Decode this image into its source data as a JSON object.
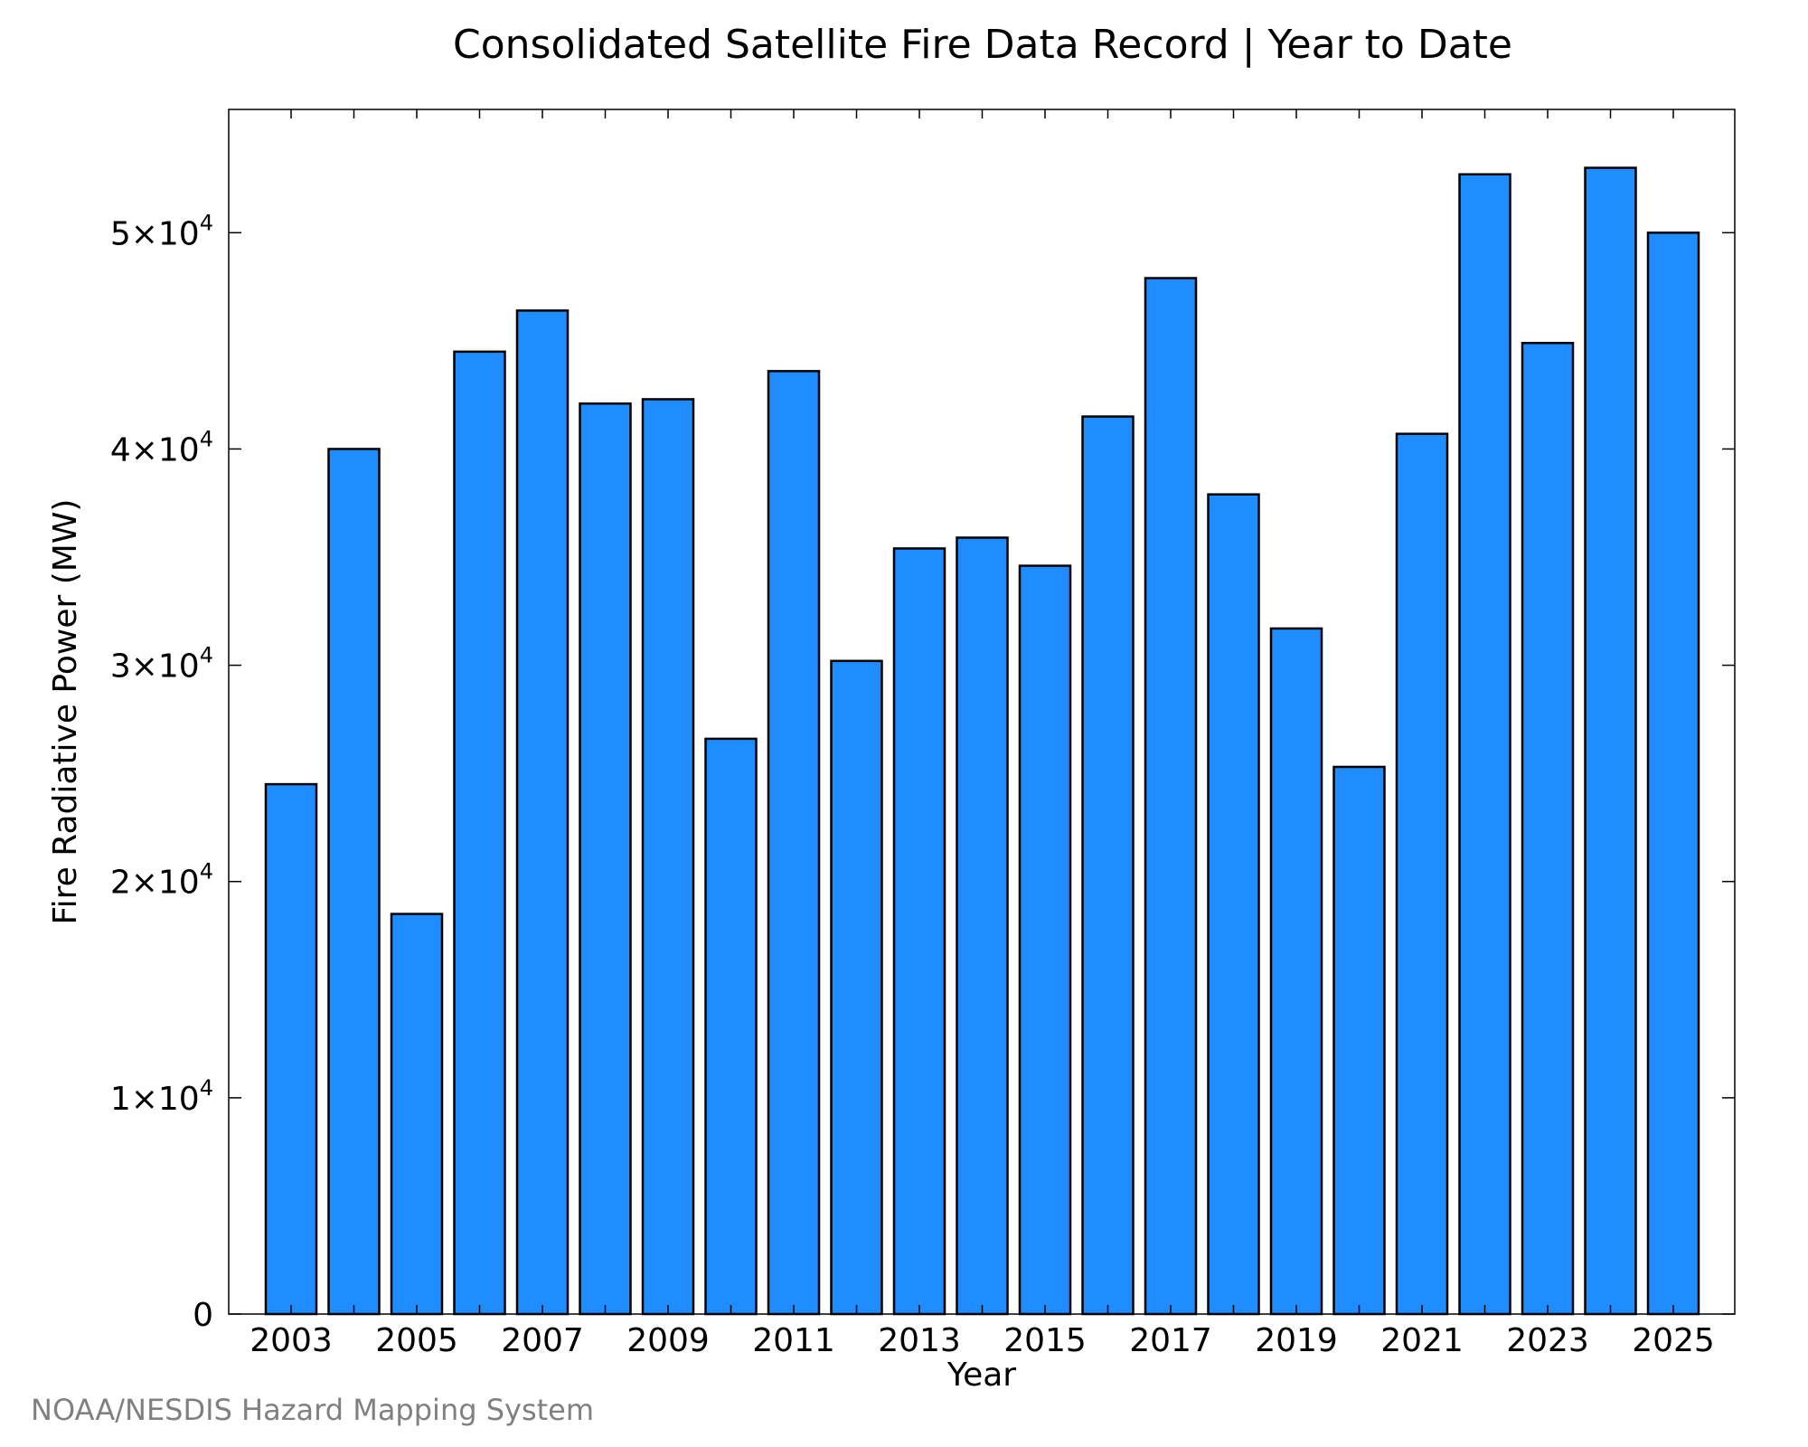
{
  "chart_data": {
    "type": "bar",
    "title": "Consolidated Satellite Fire Data Record | Year to Date",
    "xlabel": "Year",
    "ylabel": "Fire Radiative Power (MW)",
    "ylim": [
      0,
      55700
    ],
    "bar_color": "#1f8cff",
    "bar_edge_color": "#000000",
    "grid": false,
    "categories": [
      "2003",
      "2004",
      "2005",
      "2006",
      "2007",
      "2008",
      "2009",
      "2010",
      "2011",
      "2012",
      "2013",
      "2014",
      "2015",
      "2016",
      "2017",
      "2018",
      "2019",
      "2020",
      "2021",
      "2022",
      "2023",
      "2024",
      "2025"
    ],
    "values": [
      24500,
      40000,
      18500,
      44500,
      46400,
      42100,
      42300,
      26600,
      43600,
      30200,
      35400,
      35900,
      34600,
      41500,
      47900,
      37900,
      31700,
      25300,
      40700,
      52700,
      44900,
      53000,
      50000
    ],
    "x_tick_labels": [
      "2003",
      "2005",
      "2007",
      "2009",
      "2011",
      "2013",
      "2015",
      "2017",
      "2019",
      "2021",
      "2023",
      "2025"
    ],
    "y_ticks": [
      {
        "value": 0,
        "mantissa": "0",
        "exp": ""
      },
      {
        "value": 10000,
        "mantissa": "1×10",
        "exp": "4"
      },
      {
        "value": 20000,
        "mantissa": "2×10",
        "exp": "4"
      },
      {
        "value": 30000,
        "mantissa": "3×10",
        "exp": "4"
      },
      {
        "value": 40000,
        "mantissa": "4×10",
        "exp": "4"
      },
      {
        "value": 50000,
        "mantissa": "5×10",
        "exp": "4"
      }
    ]
  },
  "credit": "NOAA/NESDIS Hazard Mapping System"
}
